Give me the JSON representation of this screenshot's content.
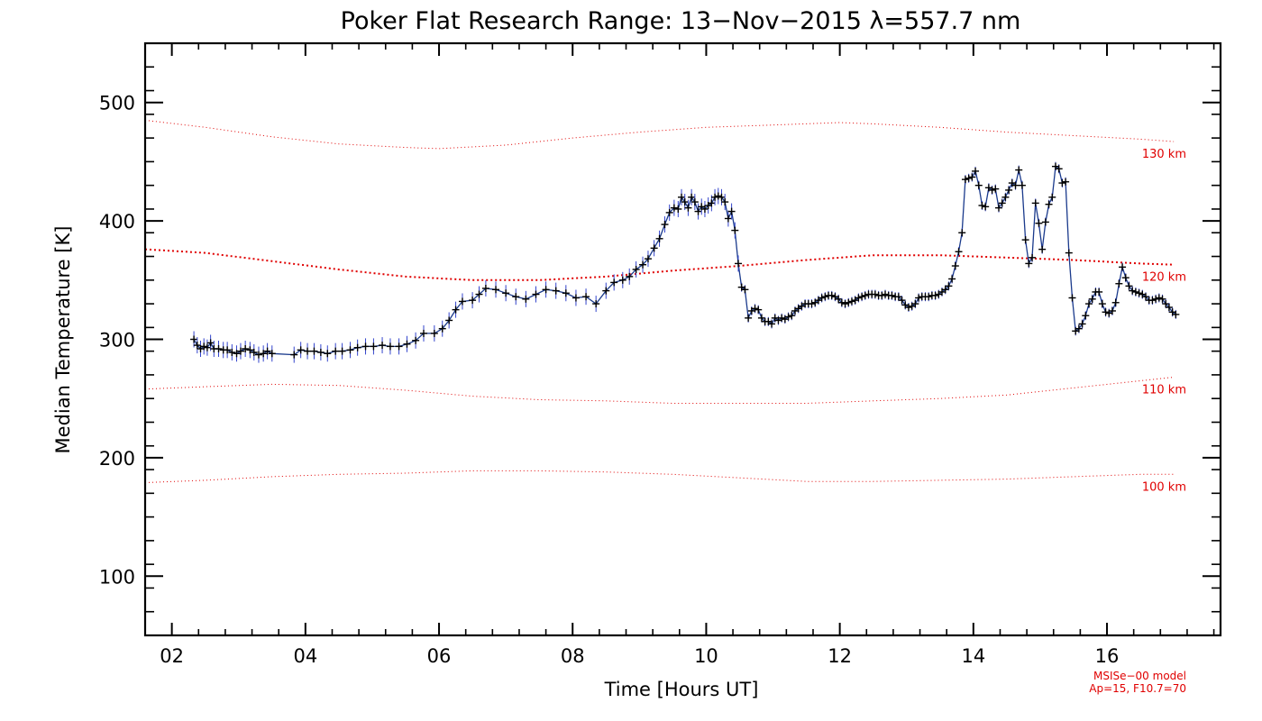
{
  "chart_data": {
    "type": "line",
    "title": "Poker Flat Research Range: 13−Nov−2015 λ=557.7 nm",
    "xlabel": "Time [Hours UT]",
    "ylabel": "Median Temperature [K]",
    "xlim": [
      1.6,
      17.7
    ],
    "ylim": [
      50,
      550
    ],
    "x_ticks": [
      2,
      4,
      6,
      8,
      10,
      12,
      14,
      16
    ],
    "x_tick_labels": [
      "02",
      "04",
      "06",
      "08",
      "10",
      "12",
      "14",
      "16"
    ],
    "y_ticks": [
      100,
      200,
      300,
      400,
      500
    ],
    "y_tick_labels": [
      "100",
      "200",
      "300",
      "400",
      "500"
    ],
    "grid": false,
    "series": [
      {
        "color": "#1a3a8c",
        "marker": "plus",
        "error_bar_color": "#3344cc",
        "points": [
          [
            2.33,
            300
          ],
          [
            2.38,
            295
          ],
          [
            2.43,
            292
          ],
          [
            2.48,
            294
          ],
          [
            2.53,
            293
          ],
          [
            2.58,
            297
          ],
          [
            2.63,
            292
          ],
          [
            2.7,
            292
          ],
          [
            2.77,
            291
          ],
          [
            2.83,
            291
          ],
          [
            2.9,
            289
          ],
          [
            2.97,
            288
          ],
          [
            3.03,
            290
          ],
          [
            3.1,
            292
          ],
          [
            3.17,
            291
          ],
          [
            3.23,
            289
          ],
          [
            3.3,
            287
          ],
          [
            3.37,
            288
          ],
          [
            3.43,
            290
          ],
          [
            3.5,
            288
          ],
          [
            3.83,
            287
          ],
          [
            3.93,
            291
          ],
          [
            4.03,
            290
          ],
          [
            4.13,
            290
          ],
          [
            4.23,
            289
          ],
          [
            4.33,
            288
          ],
          [
            4.45,
            290
          ],
          [
            4.55,
            290
          ],
          [
            4.67,
            291
          ],
          [
            4.78,
            293
          ],
          [
            4.9,
            294
          ],
          [
            5.02,
            294
          ],
          [
            5.15,
            295
          ],
          [
            5.27,
            294
          ],
          [
            5.4,
            294
          ],
          [
            5.52,
            296
          ],
          [
            5.65,
            299
          ],
          [
            5.77,
            305
          ],
          [
            5.93,
            305
          ],
          [
            6.05,
            309
          ],
          [
            6.15,
            316
          ],
          [
            6.25,
            325
          ],
          [
            6.35,
            332
          ],
          [
            6.5,
            333
          ],
          [
            6.6,
            338
          ],
          [
            6.7,
            343
          ],
          [
            6.85,
            342
          ],
          [
            7.0,
            339
          ],
          [
            7.15,
            336
          ],
          [
            7.3,
            334
          ],
          [
            7.45,
            338
          ],
          [
            7.6,
            342
          ],
          [
            7.75,
            341
          ],
          [
            7.9,
            339
          ],
          [
            8.05,
            335
          ],
          [
            8.2,
            336
          ],
          [
            8.35,
            330
          ],
          [
            8.5,
            341
          ],
          [
            8.62,
            348
          ],
          [
            8.75,
            350
          ],
          [
            8.85,
            353
          ],
          [
            8.95,
            359
          ],
          [
            9.05,
            363
          ],
          [
            9.13,
            368
          ],
          [
            9.22,
            377
          ],
          [
            9.3,
            385
          ],
          [
            9.38,
            397
          ],
          [
            9.45,
            407
          ],
          [
            9.52,
            411
          ],
          [
            9.58,
            410
          ],
          [
            9.63,
            420
          ],
          [
            9.68,
            416
          ],
          [
            9.73,
            411
          ],
          [
            9.78,
            420
          ],
          [
            9.83,
            416
          ],
          [
            9.88,
            408
          ],
          [
            9.93,
            412
          ],
          [
            9.98,
            410
          ],
          [
            10.03,
            413
          ],
          [
            10.08,
            415
          ],
          [
            10.13,
            420
          ],
          [
            10.18,
            421
          ],
          [
            10.23,
            420
          ],
          [
            10.28,
            416
          ],
          [
            10.33,
            402
          ],
          [
            10.38,
            408
          ],
          [
            10.43,
            392
          ],
          [
            10.48,
            364
          ],
          [
            10.53,
            344
          ],
          [
            10.58,
            342
          ],
          [
            10.63,
            318
          ],
          [
            10.68,
            324
          ],
          [
            10.73,
            326
          ],
          [
            10.78,
            325
          ],
          [
            10.83,
            318
          ],
          [
            10.88,
            315
          ],
          [
            10.93,
            315
          ],
          [
            10.98,
            313
          ],
          [
            11.03,
            318
          ],
          [
            11.08,
            316
          ],
          [
            11.13,
            318
          ],
          [
            11.18,
            317
          ],
          [
            11.23,
            319
          ],
          [
            11.28,
            320
          ],
          [
            11.33,
            324
          ],
          [
            11.38,
            326
          ],
          [
            11.43,
            328
          ],
          [
            11.48,
            330
          ],
          [
            11.53,
            330
          ],
          [
            11.58,
            330
          ],
          [
            11.63,
            331
          ],
          [
            11.68,
            333
          ],
          [
            11.73,
            335
          ],
          [
            11.78,
            336
          ],
          [
            11.83,
            337
          ],
          [
            11.88,
            337
          ],
          [
            11.93,
            336
          ],
          [
            11.98,
            334
          ],
          [
            12.03,
            331
          ],
          [
            12.08,
            330
          ],
          [
            12.13,
            331
          ],
          [
            12.18,
            332
          ],
          [
            12.23,
            333
          ],
          [
            12.28,
            335
          ],
          [
            12.33,
            336
          ],
          [
            12.38,
            337
          ],
          [
            12.43,
            338
          ],
          [
            12.48,
            338
          ],
          [
            12.53,
            338
          ],
          [
            12.58,
            337
          ],
          [
            12.63,
            337
          ],
          [
            12.68,
            338
          ],
          [
            12.73,
            337
          ],
          [
            12.78,
            337
          ],
          [
            12.83,
            336
          ],
          [
            12.88,
            336
          ],
          [
            12.93,
            333
          ],
          [
            12.98,
            329
          ],
          [
            13.03,
            327
          ],
          [
            13.08,
            328
          ],
          [
            13.13,
            330
          ],
          [
            13.18,
            335
          ],
          [
            13.23,
            336
          ],
          [
            13.28,
            336
          ],
          [
            13.33,
            336
          ],
          [
            13.38,
            337
          ],
          [
            13.43,
            337
          ],
          [
            13.48,
            338
          ],
          [
            13.53,
            340
          ],
          [
            13.58,
            342
          ],
          [
            13.63,
            345
          ],
          [
            13.68,
            351
          ],
          [
            13.73,
            362
          ],
          [
            13.78,
            374
          ],
          [
            13.83,
            390
          ],
          [
            13.88,
            435
          ],
          [
            13.93,
            436
          ],
          [
            13.98,
            437
          ],
          [
            14.03,
            442
          ],
          [
            14.08,
            430
          ],
          [
            14.13,
            413
          ],
          [
            14.18,
            412
          ],
          [
            14.23,
            428
          ],
          [
            14.28,
            426
          ],
          [
            14.33,
            427
          ],
          [
            14.38,
            411
          ],
          [
            14.43,
            415
          ],
          [
            14.48,
            420
          ],
          [
            14.53,
            426
          ],
          [
            14.58,
            432
          ],
          [
            14.63,
            430
          ],
          [
            14.68,
            443
          ],
          [
            14.73,
            430
          ],
          [
            14.78,
            384
          ],
          [
            14.83,
            364
          ],
          [
            14.88,
            369
          ],
          [
            14.93,
            415
          ],
          [
            14.98,
            398
          ],
          [
            15.03,
            376
          ],
          [
            15.08,
            399
          ],
          [
            15.13,
            414
          ],
          [
            15.18,
            420
          ],
          [
            15.23,
            446
          ],
          [
            15.28,
            444
          ],
          [
            15.33,
            432
          ],
          [
            15.38,
            433
          ],
          [
            15.43,
            373
          ],
          [
            15.48,
            335
          ],
          [
            15.53,
            307
          ],
          [
            15.58,
            309
          ],
          [
            15.63,
            313
          ],
          [
            15.68,
            320
          ],
          [
            15.73,
            330
          ],
          [
            15.78,
            334
          ],
          [
            15.83,
            340
          ],
          [
            15.88,
            340
          ],
          [
            15.93,
            330
          ],
          [
            15.98,
            323
          ],
          [
            16.03,
            322
          ],
          [
            16.08,
            324
          ],
          [
            16.13,
            331
          ],
          [
            16.18,
            347
          ],
          [
            16.23,
            361
          ],
          [
            16.28,
            352
          ],
          [
            16.33,
            345
          ],
          [
            16.38,
            341
          ],
          [
            16.43,
            340
          ],
          [
            16.48,
            339
          ],
          [
            16.53,
            338
          ],
          [
            16.58,
            336
          ],
          [
            16.63,
            333
          ],
          [
            16.68,
            333
          ],
          [
            16.73,
            334
          ],
          [
            16.78,
            335
          ],
          [
            16.83,
            334
          ],
          [
            16.88,
            330
          ],
          [
            16.93,
            327
          ],
          [
            16.98,
            323
          ],
          [
            17.03,
            321
          ]
        ]
      }
    ],
    "model_curves": [
      {
        "label": "130 km",
        "color": "#e00000",
        "style": "dotted",
        "points": [
          [
            1.6,
            485
          ],
          [
            2.5,
            479
          ],
          [
            3.5,
            471
          ],
          [
            4.5,
            465
          ],
          [
            5.5,
            462
          ],
          [
            6.0,
            461
          ],
          [
            7.0,
            464
          ],
          [
            8.0,
            470
          ],
          [
            9.0,
            475
          ],
          [
            10.0,
            479
          ],
          [
            11.0,
            481
          ],
          [
            12.0,
            483
          ],
          [
            12.5,
            482
          ],
          [
            13.5,
            479
          ],
          [
            14.5,
            475
          ],
          [
            15.5,
            472
          ],
          [
            16.5,
            469
          ],
          [
            17.0,
            467
          ]
        ]
      },
      {
        "label": "120 km",
        "color": "#e00000",
        "style": "dotted-bold",
        "points": [
          [
            1.6,
            376
          ],
          [
            2.5,
            373
          ],
          [
            3.5,
            366
          ],
          [
            4.5,
            359
          ],
          [
            5.5,
            353
          ],
          [
            6.5,
            350
          ],
          [
            7.5,
            350
          ],
          [
            8.5,
            353
          ],
          [
            9.5,
            358
          ],
          [
            10.5,
            362
          ],
          [
            11.5,
            367
          ],
          [
            12.5,
            371
          ],
          [
            13.5,
            371
          ],
          [
            14.5,
            369
          ],
          [
            15.5,
            367
          ],
          [
            16.5,
            364
          ],
          [
            17.0,
            363
          ]
        ]
      },
      {
        "label": "110 km",
        "color": "#e00000",
        "style": "dotted",
        "points": [
          [
            1.6,
            258
          ],
          [
            2.5,
            260
          ],
          [
            3.5,
            262
          ],
          [
            4.5,
            261
          ],
          [
            5.5,
            257
          ],
          [
            6.5,
            252
          ],
          [
            7.5,
            249
          ],
          [
            8.5,
            248
          ],
          [
            9.5,
            246
          ],
          [
            10.5,
            246
          ],
          [
            11.5,
            246
          ],
          [
            12.5,
            248
          ],
          [
            13.5,
            250
          ],
          [
            14.5,
            253
          ],
          [
            15.5,
            259
          ],
          [
            16.5,
            265
          ],
          [
            17.0,
            268
          ]
        ]
      },
      {
        "label": "100 km",
        "color": "#e00000",
        "style": "dotted",
        "points": [
          [
            1.6,
            179
          ],
          [
            2.5,
            181
          ],
          [
            3.5,
            184
          ],
          [
            4.5,
            186
          ],
          [
            5.5,
            187
          ],
          [
            6.5,
            189
          ],
          [
            7.5,
            189
          ],
          [
            8.5,
            188
          ],
          [
            9.5,
            186
          ],
          [
            10.5,
            183
          ],
          [
            11.5,
            180
          ],
          [
            12.5,
            180
          ],
          [
            13.5,
            181
          ],
          [
            14.5,
            182
          ],
          [
            15.5,
            184
          ],
          [
            16.5,
            186
          ],
          [
            17.0,
            186
          ]
        ]
      }
    ],
    "annotations": [
      "MSISe−00 model",
      "Ap=15, F10.7=70"
    ]
  }
}
